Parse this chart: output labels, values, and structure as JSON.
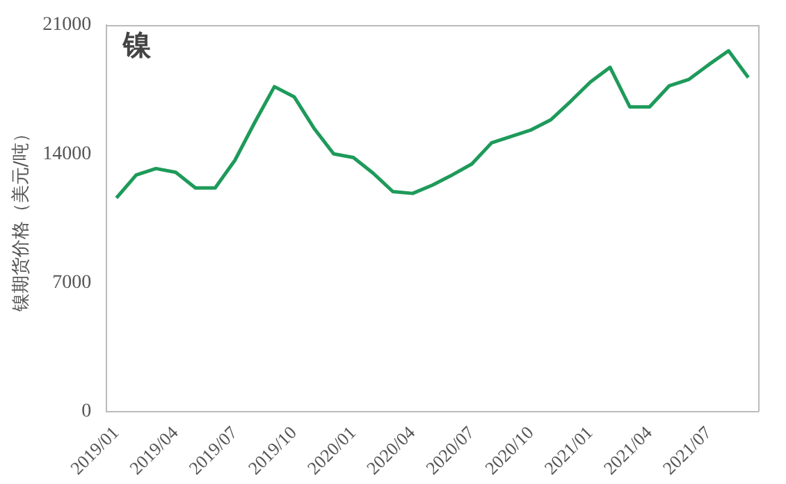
{
  "chart_data": {
    "type": "line",
    "title": "镍",
    "ylabel": "镍期货价格（美元/吨）",
    "categories": [
      "2019/01",
      null,
      null,
      "2019/04",
      null,
      null,
      "2019/07",
      null,
      null,
      "2019/10",
      null,
      null,
      "2020/01",
      null,
      null,
      "2020/04",
      null,
      null,
      "2020/07",
      null,
      null,
      "2020/10",
      null,
      null,
      "2021/01",
      null,
      null,
      "2021/04",
      null,
      null,
      "2021/07",
      null,
      null
    ],
    "series": [
      {
        "color": "#1e9a5a",
        "values": [
          11600,
          12850,
          13200,
          13000,
          12150,
          12150,
          13650,
          15700,
          17650,
          17100,
          15400,
          14000,
          13800,
          12950,
          11950,
          11850,
          12300,
          12850,
          13450,
          14600,
          14950,
          15300,
          15850,
          16850,
          17900,
          18700,
          16550,
          16550,
          17700,
          18050,
          18850,
          19600,
          18150
        ]
      }
    ],
    "ylim": [
      0,
      21000
    ],
    "yticks": [
      0,
      7000,
      14000,
      21000
    ],
    "grid": false,
    "legend": false,
    "marker": "none",
    "line_style": "solid"
  }
}
